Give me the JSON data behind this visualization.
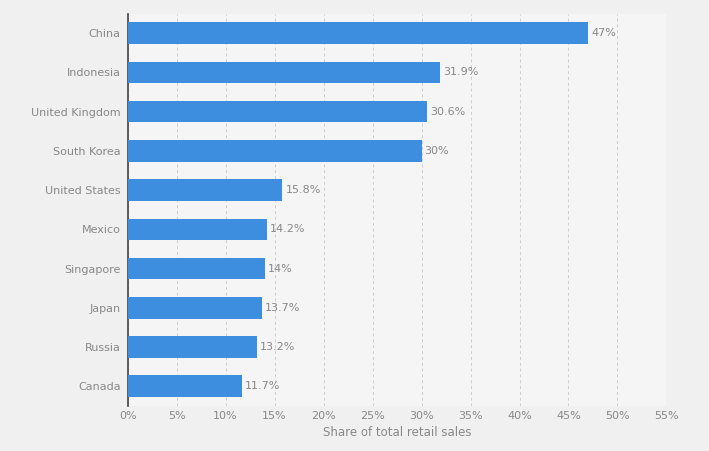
{
  "countries": [
    "Canada",
    "Russia",
    "Japan",
    "Singapore",
    "Mexico",
    "United States",
    "South Korea",
    "United Kingdom",
    "Indonesia",
    "China"
  ],
  "values": [
    11.7,
    13.2,
    13.7,
    14.0,
    14.2,
    15.8,
    30.0,
    30.6,
    31.9,
    47.0
  ],
  "labels": [
    "11.7%",
    "13.2%",
    "13.7%",
    "14%",
    "14.2%",
    "15.8%",
    "30%",
    "30.6%",
    "31.9%",
    "47%"
  ],
  "bar_color": "#3d8edf",
  "figure_bg_color": "#f0f0f0",
  "plot_bg_color": "#f5f5f5",
  "xlabel": "Share of total retail sales",
  "xlim": [
    0,
    55
  ],
  "xticks": [
    0,
    5,
    10,
    15,
    20,
    25,
    30,
    35,
    40,
    45,
    50,
    55
  ],
  "xtick_labels": [
    "0%",
    "5%",
    "10%",
    "15%",
    "20%",
    "25%",
    "30%",
    "35%",
    "40%",
    "45%",
    "50%",
    "55%"
  ],
  "label_fontsize": 8.0,
  "tick_fontsize": 8.0,
  "xlabel_fontsize": 8.5,
  "bar_height": 0.55,
  "label_color": "#888888",
  "value_label_color": "#888888",
  "grid_color": "#cccccc",
  "left_spine_color": "#444444"
}
